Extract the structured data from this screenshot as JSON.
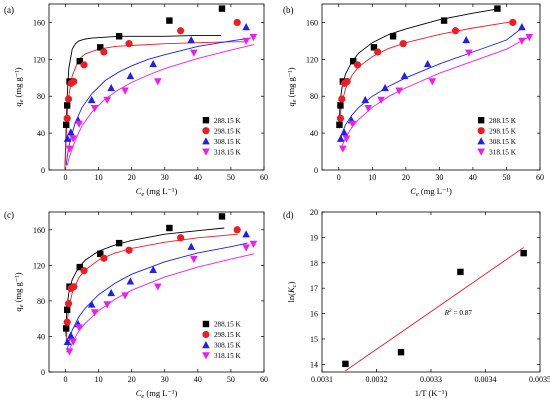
{
  "figure": {
    "panels": [
      {
        "letter": "(a)"
      },
      {
        "letter": "(b)"
      },
      {
        "letter": "(c)"
      },
      {
        "letter": "(d)"
      }
    ]
  },
  "chart_data": [
    {
      "type": "scatter",
      "panel": "(a)",
      "fit": "curve",
      "xlabel": "Ce (mg L⁻¹)",
      "ylabel": "qe (mg g⁻¹)",
      "xlim": [
        -5,
        60
      ],
      "ylim": [
        0,
        180
      ],
      "xticks": [
        0,
        10,
        20,
        30,
        40,
        50,
        60
      ],
      "yticks": [
        0,
        40,
        80,
        120,
        160
      ],
      "legend_position": "bottom-right",
      "grid": false,
      "series": [
        {
          "name": "288.15 K",
          "marker": "square",
          "color": "#000000",
          "x": [
            0.2,
            0.5,
            1.2,
            4.3,
            10.5,
            16.2,
            31.4,
            47.3
          ],
          "y": [
            49,
            70,
            96,
            118,
            133,
            145,
            162,
            175
          ],
          "fit_x": [
            -0.2,
            0.5,
            1,
            2,
            3,
            4,
            6,
            8,
            12,
            16,
            20,
            30,
            40,
            47
          ],
          "fit_y": [
            0,
            80,
            110,
            131,
            137,
            140,
            142,
            143,
            144,
            145,
            145,
            145,
            146,
            146
          ]
        },
        {
          "name": "298.15 K",
          "marker": "circle",
          "color": "#ee1c25",
          "x": [
            0.5,
            0.9,
            1.7,
            2.5,
            5.6,
            11.6,
            19.2,
            34.8,
            51.9
          ],
          "y": [
            56,
            77,
            94,
            96,
            114,
            128,
            137,
            151,
            160
          ],
          "fit_x": [
            -0.2,
            0.5,
            1,
            2,
            4,
            6,
            10,
            15,
            20,
            30,
            40,
            50,
            54
          ],
          "fit_y": [
            0,
            58,
            80,
            102,
            120,
            126,
            131,
            134,
            135,
            137,
            138,
            139,
            139
          ]
        },
        {
          "name": "308.15 K",
          "marker": "triangle-up",
          "color": "#1f1fee",
          "x": [
            0.6,
            1.6,
            3.8,
            7.9,
            13.8,
            19.6,
            26.5,
            38.0,
            54.6
          ],
          "y": [
            34,
            41,
            54,
            76,
            89,
            102,
            115,
            141,
            155
          ],
          "fit_x": [
            0.2,
            0.5,
            1,
            2,
            3,
            5,
            8,
            12,
            16,
            20,
            25,
            30,
            40,
            50,
            56
          ],
          "fit_y": [
            5,
            14,
            25,
            40,
            52,
            68,
            83,
            97,
            106,
            113,
            120,
            125,
            134,
            140,
            143
          ]
        },
        {
          "name": "318.15 K",
          "marker": "triangle-down",
          "color": "#ee1cee",
          "x": [
            1.2,
            2.3,
            4.1,
            8.8,
            12.6,
            18.0,
            27.9,
            38.8,
            54.6,
            56.8
          ],
          "y": [
            23,
            34,
            50,
            67,
            76,
            86,
            96,
            127,
            140,
            144
          ],
          "fit_x": [
            0.5,
            1,
            2,
            3,
            5,
            8,
            12,
            16,
            20,
            25,
            30,
            40,
            50,
            57
          ],
          "fit_y": [
            5,
            12,
            23,
            33,
            48,
            63,
            77,
            87,
            95,
            103,
            110,
            121,
            130,
            136
          ]
        }
      ]
    },
    {
      "type": "scatter",
      "panel": "(b)",
      "fit": "curve",
      "xlabel": "Ce (mg L⁻¹)",
      "ylabel": "qe (mg g⁻¹)",
      "xlim": [
        -5,
        60
      ],
      "ylim": [
        0,
        180
      ],
      "xticks": [
        0,
        10,
        20,
        30,
        40,
        50,
        60
      ],
      "yticks": [
        0,
        40,
        80,
        120,
        160
      ],
      "legend_position": "bottom-right",
      "grid": false,
      "series": [
        {
          "name": "288.15 K",
          "marker": "square",
          "color": "#000000",
          "x": [
            0.2,
            0.5,
            1.2,
            4.3,
            10.5,
            16.2,
            31.4,
            47.3
          ],
          "y": [
            49,
            70,
            96,
            118,
            133,
            145,
            162,
            175
          ],
          "fit_x": [
            0.1,
            0.3,
            0.6,
            1,
            2,
            4,
            6,
            10,
            15,
            20,
            30,
            40,
            48
          ],
          "fit_y": [
            46,
            66,
            80,
            90,
            104,
            118,
            127,
            138,
            147,
            153,
            163,
            170,
            175
          ]
        },
        {
          "name": "298.15 K",
          "marker": "circle",
          "color": "#ee1c25",
          "x": [
            0.5,
            0.9,
            1.7,
            2.5,
            5.6,
            11.6,
            19.2,
            34.8,
            51.9
          ],
          "y": [
            56,
            77,
            94,
            96,
            114,
            128,
            137,
            151,
            160
          ],
          "fit_x": [
            0.2,
            0.5,
            1,
            2,
            4,
            6,
            10,
            15,
            20,
            30,
            40,
            52
          ],
          "fit_y": [
            45,
            62,
            74,
            88,
            103,
            112,
            123,
            132,
            138,
            147,
            154,
            161
          ]
        },
        {
          "name": "308.15 K",
          "marker": "triangle-up",
          "color": "#1f1fee",
          "x": [
            0.6,
            1.6,
            3.8,
            7.9,
            13.8,
            19.6,
            26.5,
            38.0,
            54.6
          ],
          "y": [
            34,
            41,
            54,
            76,
            89,
            102,
            115,
            141,
            155
          ],
          "fit_x": [
            0.4,
            1,
            2,
            4,
            6,
            10,
            15,
            20,
            30,
            40,
            50,
            55
          ],
          "fit_y": [
            32,
            40,
            49,
            60,
            68,
            80,
            91,
            100,
            115,
            128,
            141,
            155
          ]
        },
        {
          "name": "318.15 K",
          "marker": "triangle-down",
          "color": "#ee1cee",
          "x": [
            1.2,
            2.3,
            4.1,
            8.8,
            12.6,
            18.0,
            27.9,
            38.8,
            54.6,
            56.8
          ],
          "y": [
            23,
            34,
            50,
            67,
            76,
            86,
            96,
            127,
            140,
            144
          ],
          "fit_x": [
            1,
            2,
            4,
            6,
            10,
            15,
            20,
            30,
            40,
            50,
            57
          ],
          "fit_y": [
            26,
            35,
            47,
            55,
            68,
            80,
            89,
            105,
            118,
            131,
            145
          ]
        }
      ]
    },
    {
      "type": "scatter",
      "panel": "(c)",
      "fit": "curve",
      "xlabel": "Ce (mg L⁻¹)",
      "ylabel": "qe (mg g⁻¹)",
      "xlim": [
        -5,
        60
      ],
      "ylim": [
        0,
        180
      ],
      "xticks": [
        0,
        10,
        20,
        30,
        40,
        50,
        60
      ],
      "yticks": [
        0,
        40,
        80,
        120,
        160
      ],
      "legend_position": "bottom-right",
      "grid": false,
      "series": [
        {
          "name": "288.15 K",
          "marker": "square",
          "color": "#000000",
          "x": [
            0.2,
            0.5,
            1.2,
            4.3,
            10.5,
            16.2,
            31.4,
            47.3
          ],
          "y": [
            49,
            70,
            96,
            118,
            133,
            145,
            162,
            175
          ],
          "fit_x": [
            0.1,
            0.3,
            0.6,
            1,
            2,
            4,
            6,
            10,
            15,
            20,
            30,
            40,
            48
          ],
          "fit_y": [
            40,
            62,
            78,
            89,
            104,
            118,
            126,
            136,
            143,
            148,
            155,
            159,
            162
          ]
        },
        {
          "name": "298.15 K",
          "marker": "circle",
          "color": "#ee1c25",
          "x": [
            0.5,
            0.9,
            1.7,
            2.5,
            5.6,
            11.6,
            19.2,
            34.8,
            51.9
          ],
          "y": [
            56,
            77,
            94,
            96,
            114,
            128,
            137,
            151,
            160
          ],
          "fit_x": [
            0.2,
            0.5,
            1,
            2,
            4,
            6,
            10,
            15,
            20,
            30,
            40,
            52
          ],
          "fit_y": [
            35,
            56,
            72,
            89,
            106,
            115,
            126,
            134,
            139,
            146,
            151,
            155
          ]
        },
        {
          "name": "308.15 K",
          "marker": "triangle-up",
          "color": "#1f1fee",
          "x": [
            0.6,
            1.6,
            3.8,
            7.9,
            13.8,
            19.6,
            26.5,
            38.0,
            54.6
          ],
          "y": [
            34,
            41,
            54,
            76,
            89,
            102,
            115,
            141,
            155
          ],
          "fit_x": [
            0.4,
            1,
            2,
            4,
            6,
            10,
            15,
            20,
            30,
            40,
            50,
            55
          ],
          "fit_y": [
            22,
            34,
            47,
            62,
            72,
            87,
            100,
            110,
            124,
            134,
            141,
            145
          ]
        },
        {
          "name": "318.15 K",
          "marker": "triangle-down",
          "color": "#ee1cee",
          "x": [
            1.2,
            2.3,
            4.1,
            8.8,
            12.6,
            18.0,
            27.9,
            38.8,
            54.6,
            56.8
          ],
          "y": [
            23,
            34,
            50,
            67,
            76,
            86,
            96,
            127,
            140,
            144
          ],
          "fit_x": [
            1,
            2,
            4,
            6,
            10,
            15,
            20,
            30,
            40,
            50,
            57
          ],
          "fit_y": [
            22,
            33,
            46,
            55,
            69,
            82,
            92,
            107,
            118,
            127,
            133
          ]
        }
      ]
    },
    {
      "type": "scatter",
      "panel": "(d)",
      "fit": "linear",
      "xlabel": "1/T (K⁻¹)",
      "ylabel": "ln(Kc)",
      "annotation": "R² = 0.87",
      "xlim": [
        0.0031,
        0.0035
      ],
      "ylim": [
        13.7,
        20
      ],
      "xticks": [
        0.0031,
        0.0032,
        0.0033,
        0.0034,
        0.0035
      ],
      "xtick_labels": [
        "0.0031",
        "0.0032",
        "0.0033",
        "0.0034",
        "0.0035"
      ],
      "yticks": [
        14,
        15,
        16,
        17,
        18,
        19,
        20
      ],
      "grid": false,
      "series": [
        {
          "marker": "square",
          "color": "#000000",
          "x": [
            0.003143,
            0.003245,
            0.003354,
            0.00347
          ],
          "y": [
            14.02,
            14.48,
            17.64,
            18.38
          ]
        }
      ],
      "fit_line": {
        "color": "#ee1c25",
        "x": [
          0.003143,
          0.00347
        ],
        "y": [
          13.75,
          18.6
        ]
      }
    }
  ]
}
